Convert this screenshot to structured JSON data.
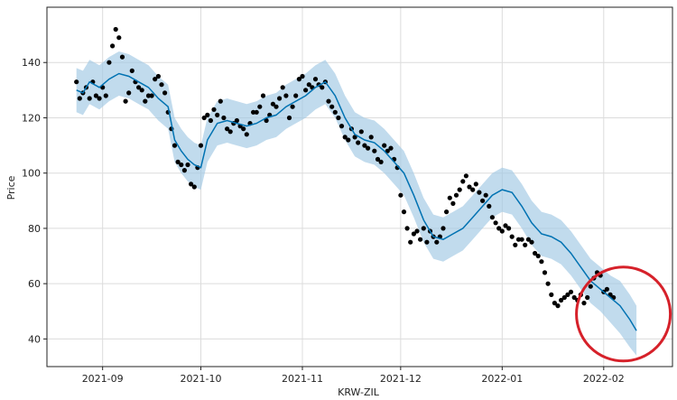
{
  "chart_data": {
    "type": "line",
    "title": "",
    "xlabel": "KRW-ZIL",
    "ylabel": "Price",
    "ylim": [
      30,
      160
    ],
    "xlim": [
      "2021-08-15",
      "2022-02-22"
    ],
    "grid": true,
    "x_ticks": [
      {
        "date": "2021-09-01",
        "label": "2021-09"
      },
      {
        "date": "2021-10-01",
        "label": "2021-10"
      },
      {
        "date": "2021-11-01",
        "label": "2021-11"
      },
      {
        "date": "2021-12-01",
        "label": "2021-12"
      },
      {
        "date": "2022-01-01",
        "label": "2022-01"
      },
      {
        "date": "2022-02-01",
        "label": "2022-02"
      }
    ],
    "y_ticks": [
      40,
      60,
      80,
      100,
      120,
      140
    ],
    "colors": {
      "forecast_line": "#0072b2",
      "interval_band": "#9fc8e3",
      "observed_points": "#000000",
      "highlight_circle": "#d6212a"
    },
    "series": [
      {
        "type": "line",
        "x": [
          "2021-08-24",
          "2021-08-26",
          "2021-08-28",
          "2021-08-31",
          "2021-09-03",
          "2021-09-06",
          "2021-09-09",
          "2021-09-12",
          "2021-09-15",
          "2021-09-18",
          "2021-09-21",
          "2021-09-23",
          "2021-09-25",
          "2021-09-27",
          "2021-09-29",
          "2021-10-01",
          "2021-10-03",
          "2021-10-06",
          "2021-10-09",
          "2021-10-12",
          "2021-10-15",
          "2021-10-18",
          "2021-10-21",
          "2021-10-24",
          "2021-10-27",
          "2021-10-30",
          "2021-11-02",
          "2021-11-05",
          "2021-11-08",
          "2021-11-11",
          "2021-11-14",
          "2021-11-17",
          "2021-11-20",
          "2021-11-23",
          "2021-11-26",
          "2021-11-29",
          "2021-12-02",
          "2021-12-05",
          "2021-12-08",
          "2021-12-11",
          "2021-12-14",
          "2021-12-17",
          "2021-12-20",
          "2021-12-23",
          "2021-12-26",
          "2021-12-29",
          "2022-01-01",
          "2022-01-04",
          "2022-01-07",
          "2022-01-10",
          "2022-01-13",
          "2022-01-16",
          "2022-01-19",
          "2022-01-22",
          "2022-01-25",
          "2022-01-28",
          "2022-01-31",
          "2022-02-03",
          "2022-02-06",
          "2022-02-09",
          "2022-02-11"
        ],
        "y": [
          130,
          129,
          133,
          131,
          134,
          136,
          135,
          133,
          131,
          127,
          124,
          112,
          108,
          105,
          103,
          102,
          112,
          118,
          119,
          118,
          117,
          118,
          120,
          121,
          124,
          126,
          128,
          131,
          133,
          128,
          120,
          114,
          112,
          111,
          108,
          104,
          100,
          92,
          83,
          77,
          76,
          78,
          80,
          84,
          88,
          92,
          94,
          93,
          88,
          82,
          78,
          77,
          75,
          71,
          66,
          61,
          58,
          55,
          52,
          47,
          43
        ]
      },
      {
        "type": "band",
        "x": [
          "2021-08-24",
          "2021-08-26",
          "2021-08-28",
          "2021-08-31",
          "2021-09-03",
          "2021-09-06",
          "2021-09-09",
          "2021-09-12",
          "2021-09-15",
          "2021-09-18",
          "2021-09-21",
          "2021-09-23",
          "2021-09-25",
          "2021-09-27",
          "2021-09-29",
          "2021-10-01",
          "2021-10-03",
          "2021-10-06",
          "2021-10-09",
          "2021-10-12",
          "2021-10-15",
          "2021-10-18",
          "2021-10-21",
          "2021-10-24",
          "2021-10-27",
          "2021-10-30",
          "2021-11-02",
          "2021-11-05",
          "2021-11-08",
          "2021-11-11",
          "2021-11-14",
          "2021-11-17",
          "2021-11-20",
          "2021-11-23",
          "2021-11-26",
          "2021-11-29",
          "2021-12-02",
          "2021-12-05",
          "2021-12-08",
          "2021-12-11",
          "2021-12-14",
          "2021-12-17",
          "2021-12-20",
          "2021-12-23",
          "2021-12-26",
          "2021-12-29",
          "2022-01-01",
          "2022-01-04",
          "2022-01-07",
          "2022-01-10",
          "2022-01-13",
          "2022-01-16",
          "2022-01-19",
          "2022-01-22",
          "2022-01-25",
          "2022-01-28",
          "2022-01-31",
          "2022-02-03",
          "2022-02-06",
          "2022-02-09",
          "2022-02-11"
        ],
        "lower": [
          122,
          121,
          125,
          123,
          126,
          128,
          127,
          125,
          123,
          119,
          116,
          104,
          100,
          97,
          95,
          94,
          104,
          110,
          111,
          110,
          109,
          110,
          112,
          113,
          116,
          118,
          120,
          123,
          125,
          120,
          112,
          106,
          104,
          103,
          100,
          96,
          92,
          84,
          75,
          69,
          68,
          70,
          72,
          76,
          80,
          84,
          86,
          85,
          80,
          74,
          70,
          69,
          67,
          63,
          58,
          53,
          50,
          46,
          42,
          37,
          34
        ],
        "upper": [
          138,
          137,
          141,
          139,
          142,
          144,
          143,
          141,
          139,
          135,
          132,
          120,
          116,
          113,
          111,
          110,
          120,
          126,
          127,
          126,
          125,
          126,
          128,
          129,
          132,
          134,
          136,
          139,
          141,
          136,
          128,
          122,
          120,
          119,
          116,
          112,
          108,
          100,
          91,
          85,
          84,
          86,
          88,
          92,
          96,
          100,
          102,
          101,
          96,
          90,
          86,
          85,
          83,
          79,
          74,
          69,
          66,
          63,
          61,
          56,
          52
        ]
      },
      {
        "type": "scatter",
        "x": [
          "2021-08-24",
          "2021-08-25",
          "2021-08-26",
          "2021-08-27",
          "2021-08-28",
          "2021-08-29",
          "2021-08-30",
          "2021-08-31",
          "2021-09-01",
          "2021-09-02",
          "2021-09-03",
          "2021-09-04",
          "2021-09-05",
          "2021-09-06",
          "2021-09-07",
          "2021-09-08",
          "2021-09-09",
          "2021-09-10",
          "2021-09-11",
          "2021-09-12",
          "2021-09-13",
          "2021-09-14",
          "2021-09-15",
          "2021-09-16",
          "2021-09-17",
          "2021-09-18",
          "2021-09-19",
          "2021-09-20",
          "2021-09-21",
          "2021-09-22",
          "2021-09-23",
          "2021-09-24",
          "2021-09-25",
          "2021-09-26",
          "2021-09-27",
          "2021-09-28",
          "2021-09-29",
          "2021-09-30",
          "2021-10-01",
          "2021-10-02",
          "2021-10-03",
          "2021-10-04",
          "2021-10-05",
          "2021-10-06",
          "2021-10-07",
          "2021-10-08",
          "2021-10-09",
          "2021-10-10",
          "2021-10-11",
          "2021-10-12",
          "2021-10-13",
          "2021-10-14",
          "2021-10-15",
          "2021-10-16",
          "2021-10-17",
          "2021-10-18",
          "2021-10-19",
          "2021-10-20",
          "2021-10-21",
          "2021-10-22",
          "2021-10-23",
          "2021-10-24",
          "2021-10-25",
          "2021-10-26",
          "2021-10-27",
          "2021-10-28",
          "2021-10-29",
          "2021-10-30",
          "2021-10-31",
          "2021-11-01",
          "2021-11-02",
          "2021-11-03",
          "2021-11-04",
          "2021-11-05",
          "2021-11-06",
          "2021-11-07",
          "2021-11-08",
          "2021-11-09",
          "2021-11-10",
          "2021-11-11",
          "2021-11-12",
          "2021-11-13",
          "2021-11-14",
          "2021-11-15",
          "2021-11-16",
          "2021-11-17",
          "2021-11-18",
          "2021-11-19",
          "2021-11-20",
          "2021-11-21",
          "2021-11-22",
          "2021-11-23",
          "2021-11-24",
          "2021-11-25",
          "2021-11-26",
          "2021-11-27",
          "2021-11-28",
          "2021-11-29",
          "2021-11-30",
          "2021-12-01",
          "2021-12-02",
          "2021-12-03",
          "2021-12-04",
          "2021-12-05",
          "2021-12-06",
          "2021-12-07",
          "2021-12-08",
          "2021-12-09",
          "2021-12-10",
          "2021-12-11",
          "2021-12-12",
          "2021-12-13",
          "2021-12-14",
          "2021-12-15",
          "2021-12-16",
          "2021-12-17",
          "2021-12-18",
          "2021-12-19",
          "2021-12-20",
          "2021-12-21",
          "2021-12-22",
          "2021-12-23",
          "2021-12-24",
          "2021-12-25",
          "2021-12-26",
          "2021-12-27",
          "2021-12-28",
          "2021-12-29",
          "2021-12-30",
          "2021-12-31",
          "2022-01-01",
          "2022-01-02",
          "2022-01-03",
          "2022-01-04",
          "2022-01-05",
          "2022-01-06",
          "2022-01-07",
          "2022-01-08",
          "2022-01-09",
          "2022-01-10",
          "2022-01-11",
          "2022-01-12",
          "2022-01-13",
          "2022-01-14",
          "2022-01-15",
          "2022-01-16",
          "2022-01-17",
          "2022-01-18",
          "2022-01-19",
          "2022-01-20",
          "2022-01-21",
          "2022-01-22",
          "2022-01-23",
          "2022-01-24",
          "2022-01-25",
          "2022-01-26",
          "2022-01-27",
          "2022-01-28",
          "2022-01-29",
          "2022-01-30",
          "2022-01-31",
          "2022-02-01",
          "2022-02-02",
          "2022-02-03",
          "2022-02-04"
        ],
        "y": [
          133,
          127,
          129,
          131,
          127,
          133,
          128,
          127,
          131,
          128,
          140,
          146,
          152,
          149,
          142,
          126,
          129,
          137,
          133,
          131,
          130,
          126,
          128,
          128,
          134,
          135,
          132,
          129,
          122,
          116,
          110,
          104,
          103,
          101,
          103,
          96,
          95,
          102,
          110,
          120,
          121,
          119,
          123,
          121,
          126,
          120,
          116,
          115,
          118,
          119,
          117,
          116,
          114,
          118,
          122,
          122,
          124,
          128,
          119,
          121,
          125,
          124,
          127,
          131,
          128,
          120,
          124,
          128,
          134,
          135,
          130,
          132,
          131,
          134,
          132,
          131,
          133,
          126,
          124,
          122,
          120,
          117,
          113,
          112,
          116,
          113,
          111,
          115,
          110,
          109,
          113,
          108,
          105,
          104,
          110,
          108,
          109,
          105,
          102,
          92,
          86,
          80,
          75,
          78,
          79,
          76,
          80,
          75,
          79,
          77,
          75,
          77,
          80,
          86,
          91,
          89,
          92,
          94,
          97,
          99,
          95,
          94,
          96,
          93,
          90,
          92,
          88,
          84,
          82,
          80,
          79,
          81,
          80,
          77,
          74,
          76,
          76,
          74,
          76,
          75,
          71,
          70,
          68,
          64,
          60,
          56,
          53,
          52,
          54,
          55,
          56,
          57,
          55,
          54,
          56,
          53,
          55,
          59,
          62,
          64,
          63,
          57,
          58,
          56,
          55
        ]
      }
    ],
    "annotations": [
      {
        "type": "circle",
        "color": "#d6212a",
        "around": {
          "x": "2022-02-07",
          "y": 49
        }
      }
    ]
  }
}
